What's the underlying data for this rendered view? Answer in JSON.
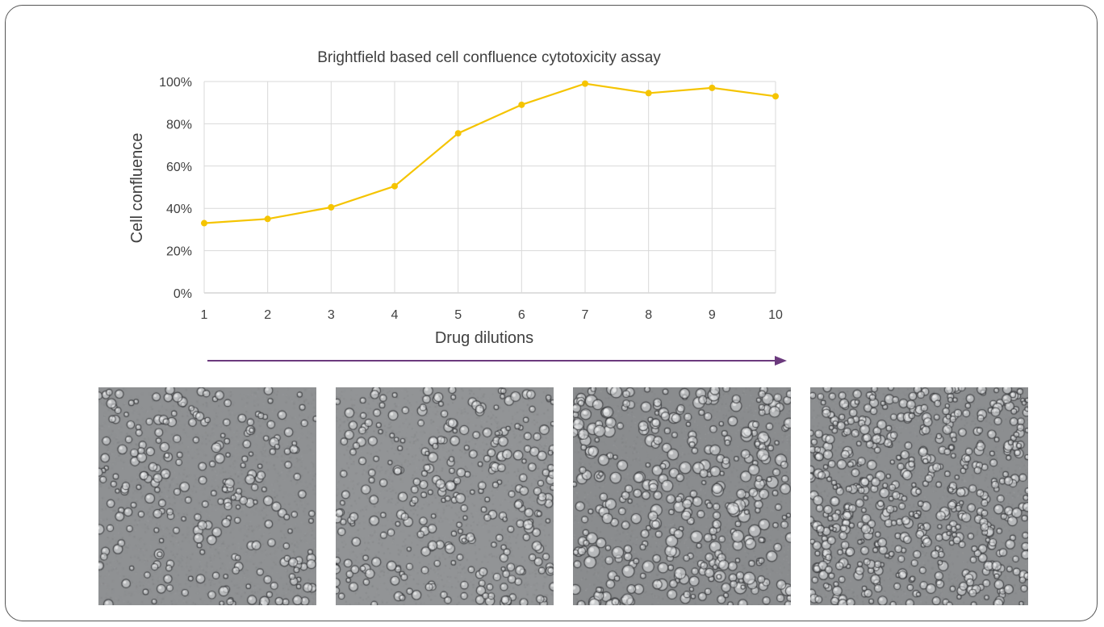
{
  "chart_data": {
    "type": "line",
    "title": "Brightfield based cell confluence cytotoxicity assay",
    "xlabel": "Drug dilutions",
    "ylabel": "Cell confluence",
    "x": [
      "1",
      "2",
      "3",
      "4",
      "5",
      "6",
      "7",
      "8",
      "9",
      "10"
    ],
    "series": [
      {
        "values": [
          33,
          35,
          40.5,
          50.5,
          75.5,
          89,
          99,
          94.5,
          97,
          93
        ]
      }
    ],
    "ylim": [
      0,
      100
    ],
    "yticks": [
      "0%",
      "20%",
      "40%",
      "60%",
      "80%",
      "100%"
    ],
    "grid": true,
    "colors": {
      "line": "#f5c400",
      "arrow": "#6b3a7d",
      "grid": "#d9d9d9"
    }
  },
  "images": [
    {
      "name": "brightfield-image-1",
      "density": 0.35,
      "tone": "#8f9193"
    },
    {
      "name": "brightfield-image-2",
      "density": 0.45,
      "tone": "#929496"
    },
    {
      "name": "brightfield-image-3",
      "density": 0.6,
      "tone": "#8a8c8e"
    },
    {
      "name": "brightfield-image-4",
      "density": 0.95,
      "tone": "#8c8e90"
    }
  ]
}
